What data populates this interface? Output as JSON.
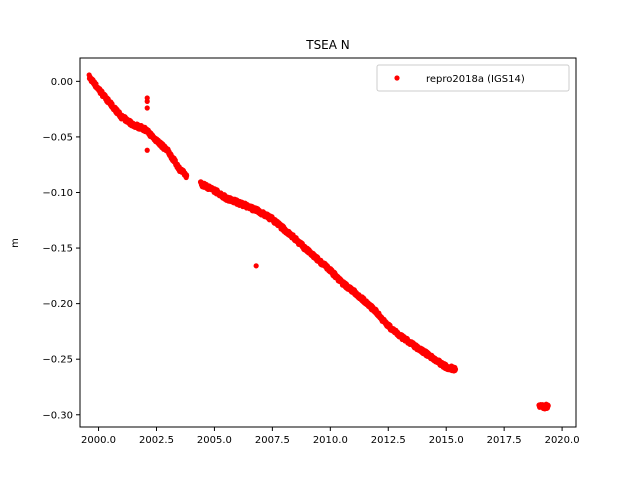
{
  "chart_data": {
    "type": "scatter",
    "title": "TSEA N",
    "xlabel": "",
    "ylabel": "m",
    "xlim": [
      1999.2,
      2020.6
    ],
    "ylim": [
      -0.311,
      0.021
    ],
    "xticks": [
      2000.0,
      2002.5,
      2005.0,
      2007.5,
      2010.0,
      2012.5,
      2015.0,
      2017.5,
      2020.0
    ],
    "xtick_labels": [
      "2000.0",
      "2002.5",
      "2005.0",
      "2007.5",
      "2010.0",
      "2012.5",
      "2015.0",
      "2017.5",
      "2020.0"
    ],
    "yticks": [
      0.0,
      -0.05,
      -0.1,
      -0.15,
      -0.2,
      -0.25,
      -0.3
    ],
    "ytick_labels": [
      "0.00",
      "−0.05",
      "−0.10",
      "−0.15",
      "−0.20",
      "−0.25",
      "−0.30"
    ],
    "grid": false,
    "legend_position": "top-right",
    "series": [
      {
        "name": "repro2018a (IGS14)",
        "color": "#ff0000",
        "marker": "circle",
        "segments": [
          {
            "x": [
              1999.6,
              2000.0,
              2000.5,
              2001.0,
              2001.5,
              2002.0,
              2002.5,
              2003.0,
              2003.5,
              2003.8
            ],
            "y": [
              0.004,
              -0.007,
              -0.02,
              -0.032,
              -0.039,
              -0.043,
              -0.053,
              -0.063,
              -0.079,
              -0.085
            ]
          },
          {
            "x": [
              2004.4,
              2005.0,
              2005.5,
              2006.0,
              2006.5,
              2007.0,
              2007.5,
              2008.0,
              2008.5,
              2009.0,
              2009.5,
              2010.0,
              2010.5,
              2011.0,
              2011.5,
              2012.0,
              2012.5,
              2013.0,
              2013.5,
              2014.0,
              2014.5,
              2015.0,
              2015.4
            ],
            "y": [
              -0.092,
              -0.098,
              -0.105,
              -0.109,
              -0.113,
              -0.118,
              -0.124,
              -0.133,
              -0.142,
              -0.152,
              -0.161,
              -0.17,
              -0.181,
              -0.189,
              -0.198,
              -0.208,
              -0.22,
              -0.229,
              -0.236,
              -0.243,
              -0.25,
              -0.257,
              -0.259
            ]
          },
          {
            "x": [
              2019.0,
              2019.2,
              2019.4
            ],
            "y": [
              -0.291,
              -0.293,
              -0.292
            ]
          }
        ],
        "outliers": [
          {
            "x": 2002.1,
            "y": -0.015
          },
          {
            "x": 2002.1,
            "y": -0.018
          },
          {
            "x": 2002.1,
            "y": -0.024
          },
          {
            "x": 2002.1,
            "y": -0.062
          },
          {
            "x": 2006.8,
            "y": -0.166
          }
        ]
      }
    ]
  }
}
